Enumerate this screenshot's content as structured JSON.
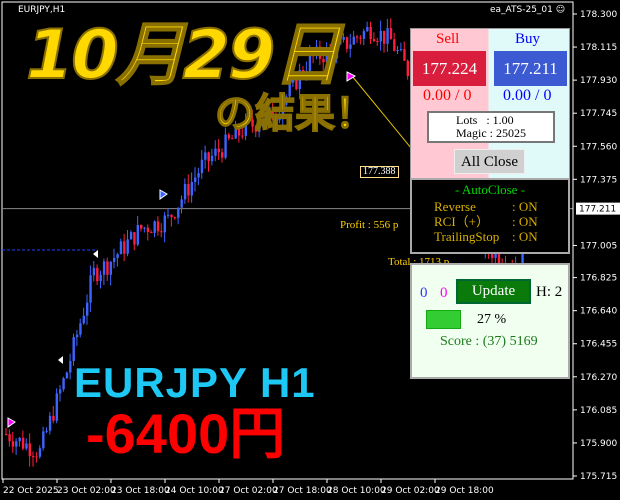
{
  "window": {
    "symbol_label": "EURJPY,H1",
    "ea_label": "ea_ATS-25_01",
    "ea_icon": "smiley-icon"
  },
  "overlay": {
    "date_title": "10月29日",
    "result_title": "の結果！",
    "pair_title": "EURJPY  H1",
    "pl_title": "-6400円"
  },
  "chart_data": {
    "type": "candlestick",
    "symbol": "EURJPY",
    "timeframe": "H1",
    "ylim": [
      175.715,
      178.3
    ],
    "y_ticks": [
      "178.300",
      "178.115",
      "177.930",
      "177.745",
      "177.560",
      "177.375",
      "177.005",
      "176.825",
      "176.640",
      "176.455",
      "176.270",
      "176.085",
      "175.900",
      "175.715"
    ],
    "x_ticks": [
      "22 Oct 2025",
      "23 Oct 02:00",
      "23 Oct 18:00",
      "24 Oct 10:00",
      "27 Oct 02:00",
      "27 Oct 18:00",
      "28 Oct 10:00",
      "29 Oct 02:00",
      "29 Oct 18:00"
    ],
    "current_price": "177.211",
    "price_path": [
      [
        0,
        175.95
      ],
      [
        10,
        175.85
      ],
      [
        18,
        176.3
      ],
      [
        26,
        176.85
      ],
      [
        30,
        176.9
      ],
      [
        40,
        177.1
      ],
      [
        48,
        177.15
      ],
      [
        58,
        177.45
      ],
      [
        70,
        177.65
      ],
      [
        80,
        177.75
      ],
      [
        90,
        178.05
      ],
      [
        98,
        178.1
      ],
      [
        108,
        178.22
      ],
      [
        114,
        178.15
      ],
      [
        120,
        177.95
      ],
      [
        126,
        177.6
      ],
      [
        130,
        177.2
      ],
      [
        136,
        177.1
      ],
      [
        142,
        177.0
      ],
      [
        150,
        176.9
      ],
      [
        158,
        176.95
      ],
      [
        154,
        176.92
      ]
    ],
    "bull_color": "#3c64ff",
    "bear_color": "#ff1e3c"
  },
  "trade_panel": {
    "sell_label": "Sell",
    "buy_label": "Buy",
    "sell_price": "177.224",
    "buy_price": "177.211",
    "sell_pos": "0.00 / 0",
    "buy_pos": "0.00 / 0",
    "lots": "Lots   : 1.00",
    "magic": "Magic : 25025",
    "all_close": "All Close",
    "line_price": "177.388"
  },
  "autoclose": {
    "title": "- AutoClose -",
    "rows": [
      {
        "label": "Reverse",
        "value": ": ON"
      },
      {
        "label": "RCI（+）",
        "value": ": ON"
      },
      {
        "label": "TrailingStop",
        "value": ": ON"
      }
    ]
  },
  "chart_labels": {
    "profit": "Profit : 556 p",
    "total": "Total : 1713 p"
  },
  "status_panel": {
    "count_blue": "0",
    "count_magenta": "0",
    "update_label": "Update",
    "h_label": "H: 2",
    "progress_percent": 27,
    "progress_text": "27 %",
    "score": "Score : (37) 5169"
  }
}
